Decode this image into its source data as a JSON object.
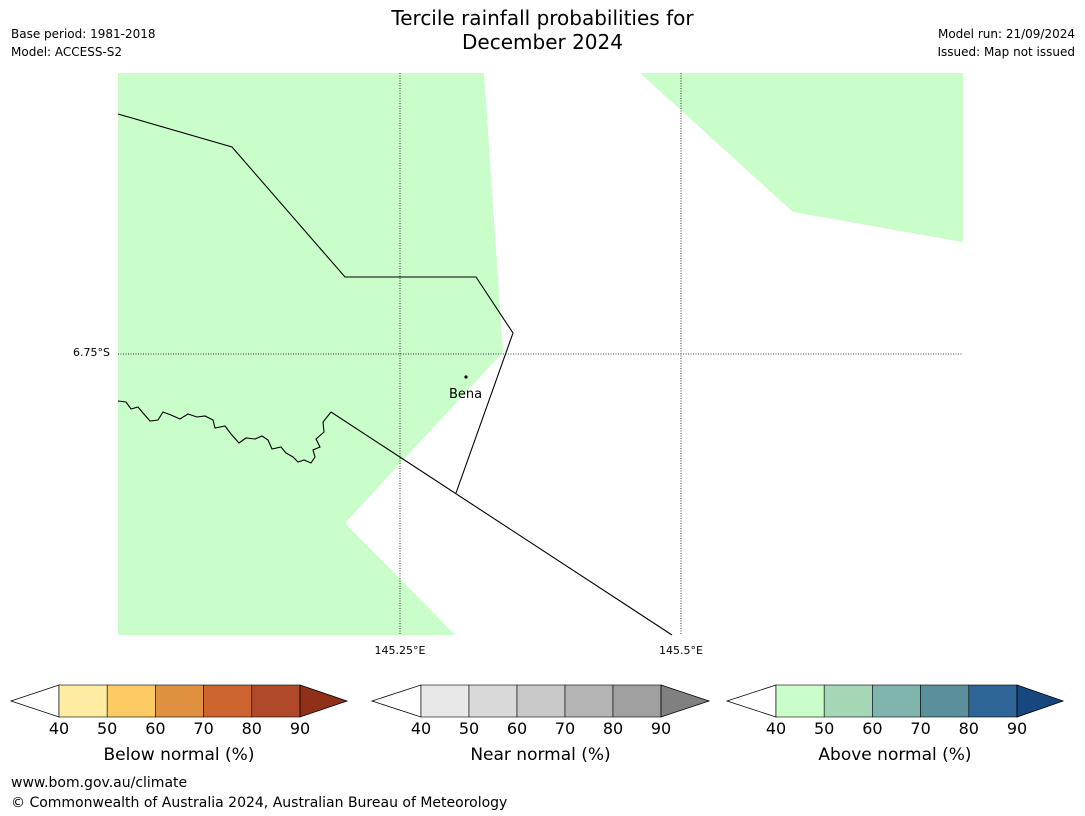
{
  "title_line1": "Tercile rainfall probabilities for",
  "title_line2": "December 2024",
  "meta": {
    "base_period": "Base period: 1981-2018",
    "model": "Model: ACCESS-S2",
    "model_run": "Model run: 21/09/2024",
    "issued": "Issued: Map not issued"
  },
  "map": {
    "lat_label": "6.75°S",
    "lon_labels": [
      "145.25°E",
      "145.5°E"
    ],
    "place_label": "Bena",
    "colors": {
      "above_50_60": "#c9fdca",
      "land_outline": "#000000"
    }
  },
  "colorbars": [
    {
      "name": "below",
      "label": "Below normal (%)",
      "ticks": [
        "40",
        "50",
        "60",
        "70",
        "80",
        "90"
      ],
      "colors": [
        "#ffffff",
        "#feeda0",
        "#fdca64",
        "#e09140",
        "#cd6430",
        "#b0492a",
        "#913018"
      ]
    },
    {
      "name": "near",
      "label": "Near normal (%)",
      "ticks": [
        "40",
        "50",
        "60",
        "70",
        "80",
        "90"
      ],
      "colors": [
        "#ffffff",
        "#e8e8e8",
        "#d9d9d9",
        "#c8c8c8",
        "#b4b4b4",
        "#a0a0a0",
        "#808080"
      ]
    },
    {
      "name": "above",
      "label": "Above normal (%)",
      "ticks": [
        "40",
        "50",
        "60",
        "70",
        "80",
        "90"
      ],
      "colors": [
        "#ffffff",
        "#c9fdca",
        "#a4d7b5",
        "#80b5ae",
        "#5a8f9c",
        "#2e6496",
        "#16477f"
      ]
    }
  ],
  "footer": {
    "url": "www.bom.gov.au/climate",
    "copyright": "© Commonwealth of Australia 2024, Australian Bureau of Meteorology"
  }
}
